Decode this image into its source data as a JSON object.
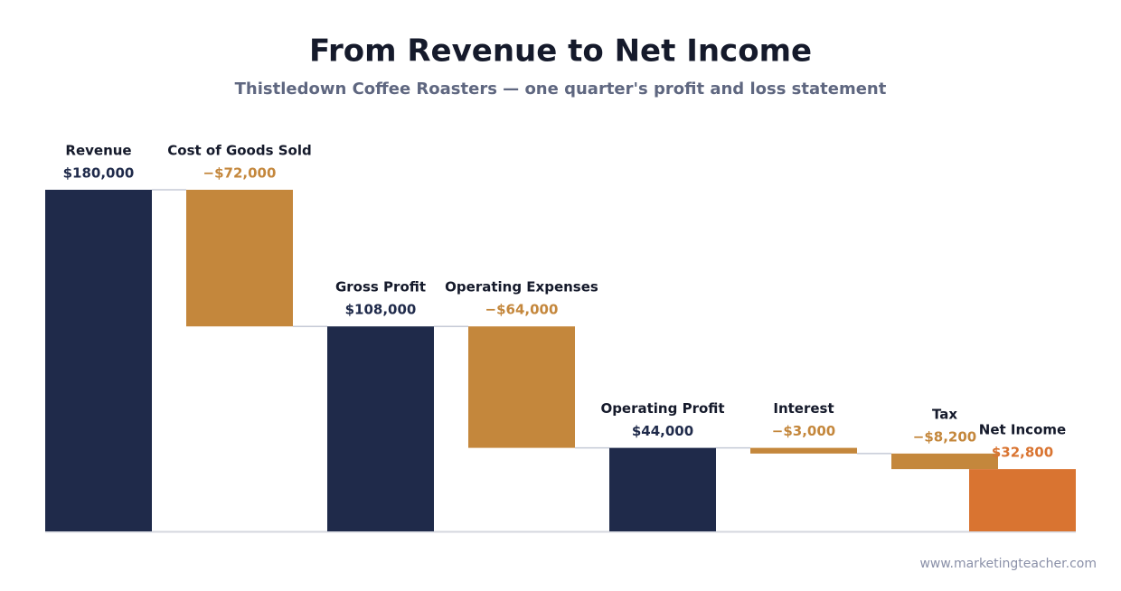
{
  "chart_data": {
    "type": "waterfall",
    "title": "From Revenue to Net Income",
    "subtitle": "Thistledown Coffee Roasters — one quarter's profit and loss statement",
    "categories": [
      "Revenue",
      "Cost of Goods Sold",
      "Gross Profit",
      "Operating Expenses",
      "Operating Profit",
      "Interest",
      "Tax",
      "Net Income"
    ],
    "values": [
      180000,
      -72000,
      108000,
      -64000,
      44000,
      -3000,
      -8200,
      32800
    ],
    "value_labels": [
      "$180,000",
      "−$72,000",
      "$108,000",
      "−$64,000",
      "$44,000",
      "−$3,000",
      "−$8,200",
      "$32,800"
    ],
    "colors": [
      "#1f2a4a",
      "#c4873c",
      "#1f2a4a",
      "#c4873c",
      "#1f2a4a",
      "#c4873c",
      "#c4873c",
      "#d97431"
    ]
  },
  "source": "www.marketingteacher.com"
}
